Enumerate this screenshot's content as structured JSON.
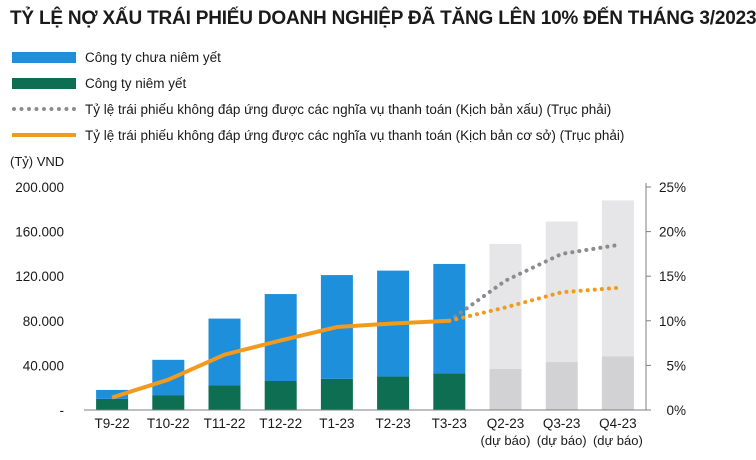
{
  "title": "TỶ LỆ  NỢ XẤU TRÁI PHIẾU DOANH NGHIỆP ĐÃ TĂNG LÊN 10% ĐẾN THÁNG 3/2023",
  "colors": {
    "unlisted": "#1E8FDB",
    "listed": "#0E6E52",
    "forecast_unlisted": "#E6E6E8",
    "forecast_listed": "#D2D2D4",
    "bad_case": "#8C8C8C",
    "base_case": "#F39A1E"
  },
  "chart_data": {
    "type": "bar",
    "title": "TỶ LỆ  NỢ XẤU TRÁI PHIẾU DOANH NGHIỆP ĐÃ TĂNG LÊN 10% ĐẾN THÁNG 3/2023",
    "y_unit_label": "(Tỷ) VND",
    "categories": [
      "T9-22",
      "T10-22",
      "T11-22",
      "T12-22",
      "T1-23",
      "T2-23",
      "T3-23",
      "Q2-23",
      "Q3-23",
      "Q4-23"
    ],
    "category_sublabels": [
      "",
      "",
      "",
      "",
      "",
      "",
      "",
      "(dự báo)",
      "(dự báo)",
      "(dự báo)"
    ],
    "forecast_from_index": 7,
    "stacked": true,
    "ylim": [
      0,
      200000
    ],
    "y_ticks": [
      0,
      40000,
      80000,
      120000,
      160000,
      200000
    ],
    "y_tick_labels": [
      "-",
      "40.000",
      "80.000",
      "120.000",
      "160.000",
      "200.000"
    ],
    "y2lim": [
      0,
      25
    ],
    "y2_ticks": [
      0,
      5,
      10,
      15,
      20,
      25
    ],
    "y2_tick_labels": [
      "0%",
      "5%",
      "10%",
      "15%",
      "20%",
      "25%"
    ],
    "grid": false,
    "legend_position": "top-left",
    "series": [
      {
        "name": "Công ty chưa niêm yết",
        "type": "bar",
        "axis": "left",
        "values": [
          8000,
          32000,
          60000,
          78000,
          93000,
          95000,
          98000,
          112000,
          126000,
          140000
        ]
      },
      {
        "name": "Công ty niêm yết",
        "type": "bar",
        "axis": "left",
        "values": [
          10000,
          13000,
          22000,
          26000,
          28000,
          30000,
          33000,
          37000,
          43000,
          48000
        ]
      },
      {
        "name": "Tỷ lệ trái phiếu không đáp ứng được các nghĩa vụ thanh toán (Kịch bản xấu) (Trục phải)",
        "type": "line",
        "axis": "right",
        "style": "dotted",
        "values": [
          null,
          null,
          null,
          null,
          null,
          null,
          10,
          14.5,
          17.5,
          18.5
        ]
      },
      {
        "name": "Tỷ lệ trái phiếu không đáp ứng được các nghĩa vụ thanh toán (Kịch bản cơ sở) (Trục phải)",
        "type": "line",
        "axis": "right",
        "style": "solid-then-dotted",
        "values": [
          1.4,
          3.4,
          6.2,
          7.8,
          9.3,
          9.7,
          10,
          11.5,
          13.2,
          13.7
        ]
      }
    ]
  }
}
